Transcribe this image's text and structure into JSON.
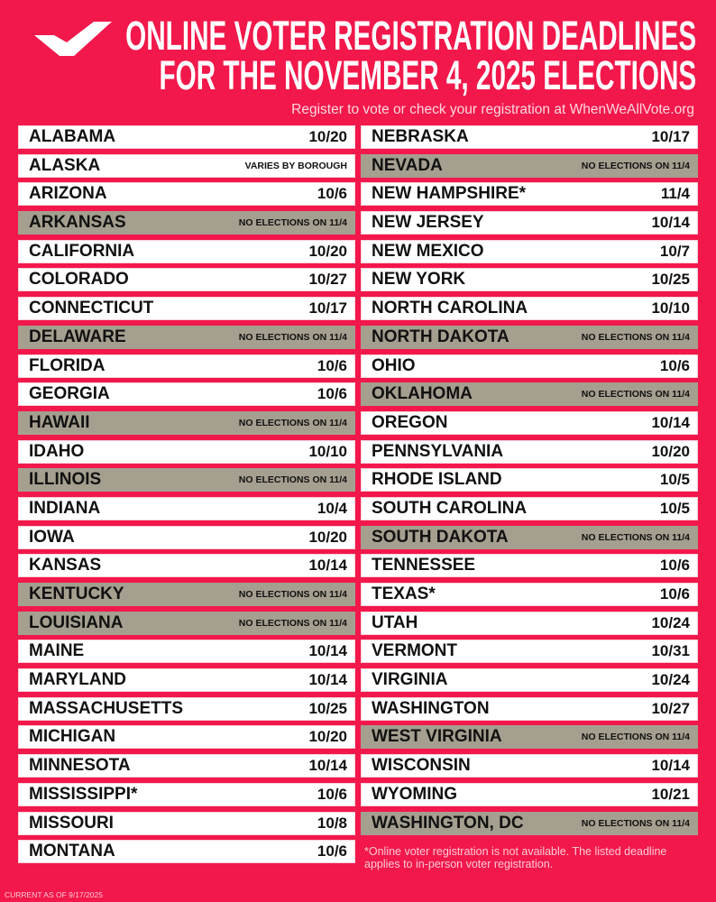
{
  "header": {
    "title_line1": "ONLINE VOTER REGISTRATION DEADLINES",
    "title_line2": "FOR THE NOVEMBER 4, 2025 ELECTIONS",
    "subtitle": "Register to vote or check your registration at WhenWeAllVote.org",
    "logo_icon": "checkmark-logo"
  },
  "colors": {
    "background": "#f2184b",
    "no_election_row": "#a59f90",
    "row": "#ffffff"
  },
  "left_column": [
    {
      "state": "ALABAMA",
      "deadline": "10/20",
      "no_election": false
    },
    {
      "state": "ALASKA",
      "deadline": "VARIES BY BOROUGH",
      "no_election": false
    },
    {
      "state": "ARIZONA",
      "deadline": "10/6",
      "no_election": false
    },
    {
      "state": "ARKANSAS",
      "deadline": "NO ELECTIONS ON 11/4",
      "no_election": true
    },
    {
      "state": "CALIFORNIA",
      "deadline": "10/20",
      "no_election": false
    },
    {
      "state": "COLORADO",
      "deadline": "10/27",
      "no_election": false
    },
    {
      "state": "CONNECTICUT",
      "deadline": "10/17",
      "no_election": false
    },
    {
      "state": "DELAWARE",
      "deadline": "NO ELECTIONS ON 11/4",
      "no_election": true
    },
    {
      "state": "FLORIDA",
      "deadline": "10/6",
      "no_election": false
    },
    {
      "state": "GEORGIA",
      "deadline": "10/6",
      "no_election": false
    },
    {
      "state": "HAWAII",
      "deadline": "NO ELECTIONS ON 11/4",
      "no_election": true
    },
    {
      "state": "IDAHO",
      "deadline": "10/10",
      "no_election": false
    },
    {
      "state": "ILLINOIS",
      "deadline": "NO ELECTIONS ON 11/4",
      "no_election": true
    },
    {
      "state": "INDIANA",
      "deadline": "10/4",
      "no_election": false
    },
    {
      "state": "IOWA",
      "deadline": "10/20",
      "no_election": false
    },
    {
      "state": "KANSAS",
      "deadline": "10/14",
      "no_election": false
    },
    {
      "state": "KENTUCKY",
      "deadline": "NO ELECTIONS ON 11/4",
      "no_election": true
    },
    {
      "state": "LOUISIANA",
      "deadline": "NO ELECTIONS ON 11/4",
      "no_election": true
    },
    {
      "state": "MAINE",
      "deadline": "10/14",
      "no_election": false
    },
    {
      "state": "MARYLAND",
      "deadline": "10/14",
      "no_election": false
    },
    {
      "state": "MASSACHUSETTS",
      "deadline": "10/25",
      "no_election": false
    },
    {
      "state": "MICHIGAN",
      "deadline": "10/20",
      "no_election": false
    },
    {
      "state": "MINNESOTA",
      "deadline": "10/14",
      "no_election": false
    },
    {
      "state": "MISSISSIPPI*",
      "deadline": "10/6",
      "no_election": false
    },
    {
      "state": "MISSOURI",
      "deadline": "10/8",
      "no_election": false
    },
    {
      "state": "MONTANA",
      "deadline": "10/6",
      "no_election": false
    }
  ],
  "right_column": [
    {
      "state": "NEBRASKA",
      "deadline": "10/17",
      "no_election": false
    },
    {
      "state": "NEVADA",
      "deadline": "NO ELECTIONS ON 11/4",
      "no_election": true
    },
    {
      "state": "NEW HAMPSHIRE*",
      "deadline": "11/4",
      "no_election": false
    },
    {
      "state": "NEW JERSEY",
      "deadline": "10/14",
      "no_election": false
    },
    {
      "state": "NEW MEXICO",
      "deadline": "10/7",
      "no_election": false
    },
    {
      "state": "NEW YORK",
      "deadline": "10/25",
      "no_election": false
    },
    {
      "state": "NORTH CAROLINA",
      "deadline": "10/10",
      "no_election": false
    },
    {
      "state": "NORTH DAKOTA",
      "deadline": "NO ELECTIONS ON 11/4",
      "no_election": true
    },
    {
      "state": "OHIO",
      "deadline": "10/6",
      "no_election": false
    },
    {
      "state": "OKLAHOMA",
      "deadline": "NO ELECTIONS ON 11/4",
      "no_election": true
    },
    {
      "state": "OREGON",
      "deadline": "10/14",
      "no_election": false
    },
    {
      "state": "PENNSYLVANIA",
      "deadline": "10/20",
      "no_election": false
    },
    {
      "state": "RHODE ISLAND",
      "deadline": "10/5",
      "no_election": false
    },
    {
      "state": "SOUTH CAROLINA",
      "deadline": "10/5",
      "no_election": false
    },
    {
      "state": "SOUTH DAKOTA",
      "deadline": "NO ELECTIONS ON 11/4",
      "no_election": true
    },
    {
      "state": "TENNESSEE",
      "deadline": "10/6",
      "no_election": false
    },
    {
      "state": "TEXAS*",
      "deadline": "10/6",
      "no_election": false
    },
    {
      "state": "UTAH",
      "deadline": "10/24",
      "no_election": false
    },
    {
      "state": "VERMONT",
      "deadline": "10/31",
      "no_election": false
    },
    {
      "state": "VIRGINIA",
      "deadline": "10/24",
      "no_election": false
    },
    {
      "state": "WASHINGTON",
      "deadline": "10/27",
      "no_election": false
    },
    {
      "state": "WEST VIRGINIA",
      "deadline": "NO ELECTIONS ON 11/4",
      "no_election": true
    },
    {
      "state": "WISCONSIN",
      "deadline": "10/14",
      "no_election": false
    },
    {
      "state": "WYOMING",
      "deadline": "10/21",
      "no_election": false
    },
    {
      "state": "WASHINGTON, DC",
      "deadline": "NO ELECTIONS ON 11/4",
      "no_election": true
    }
  ],
  "footnote": "*Online voter registration is not available. The listed deadline applies to in-person voter registration.",
  "footer": "CURRENT AS OF 9/17/2025"
}
